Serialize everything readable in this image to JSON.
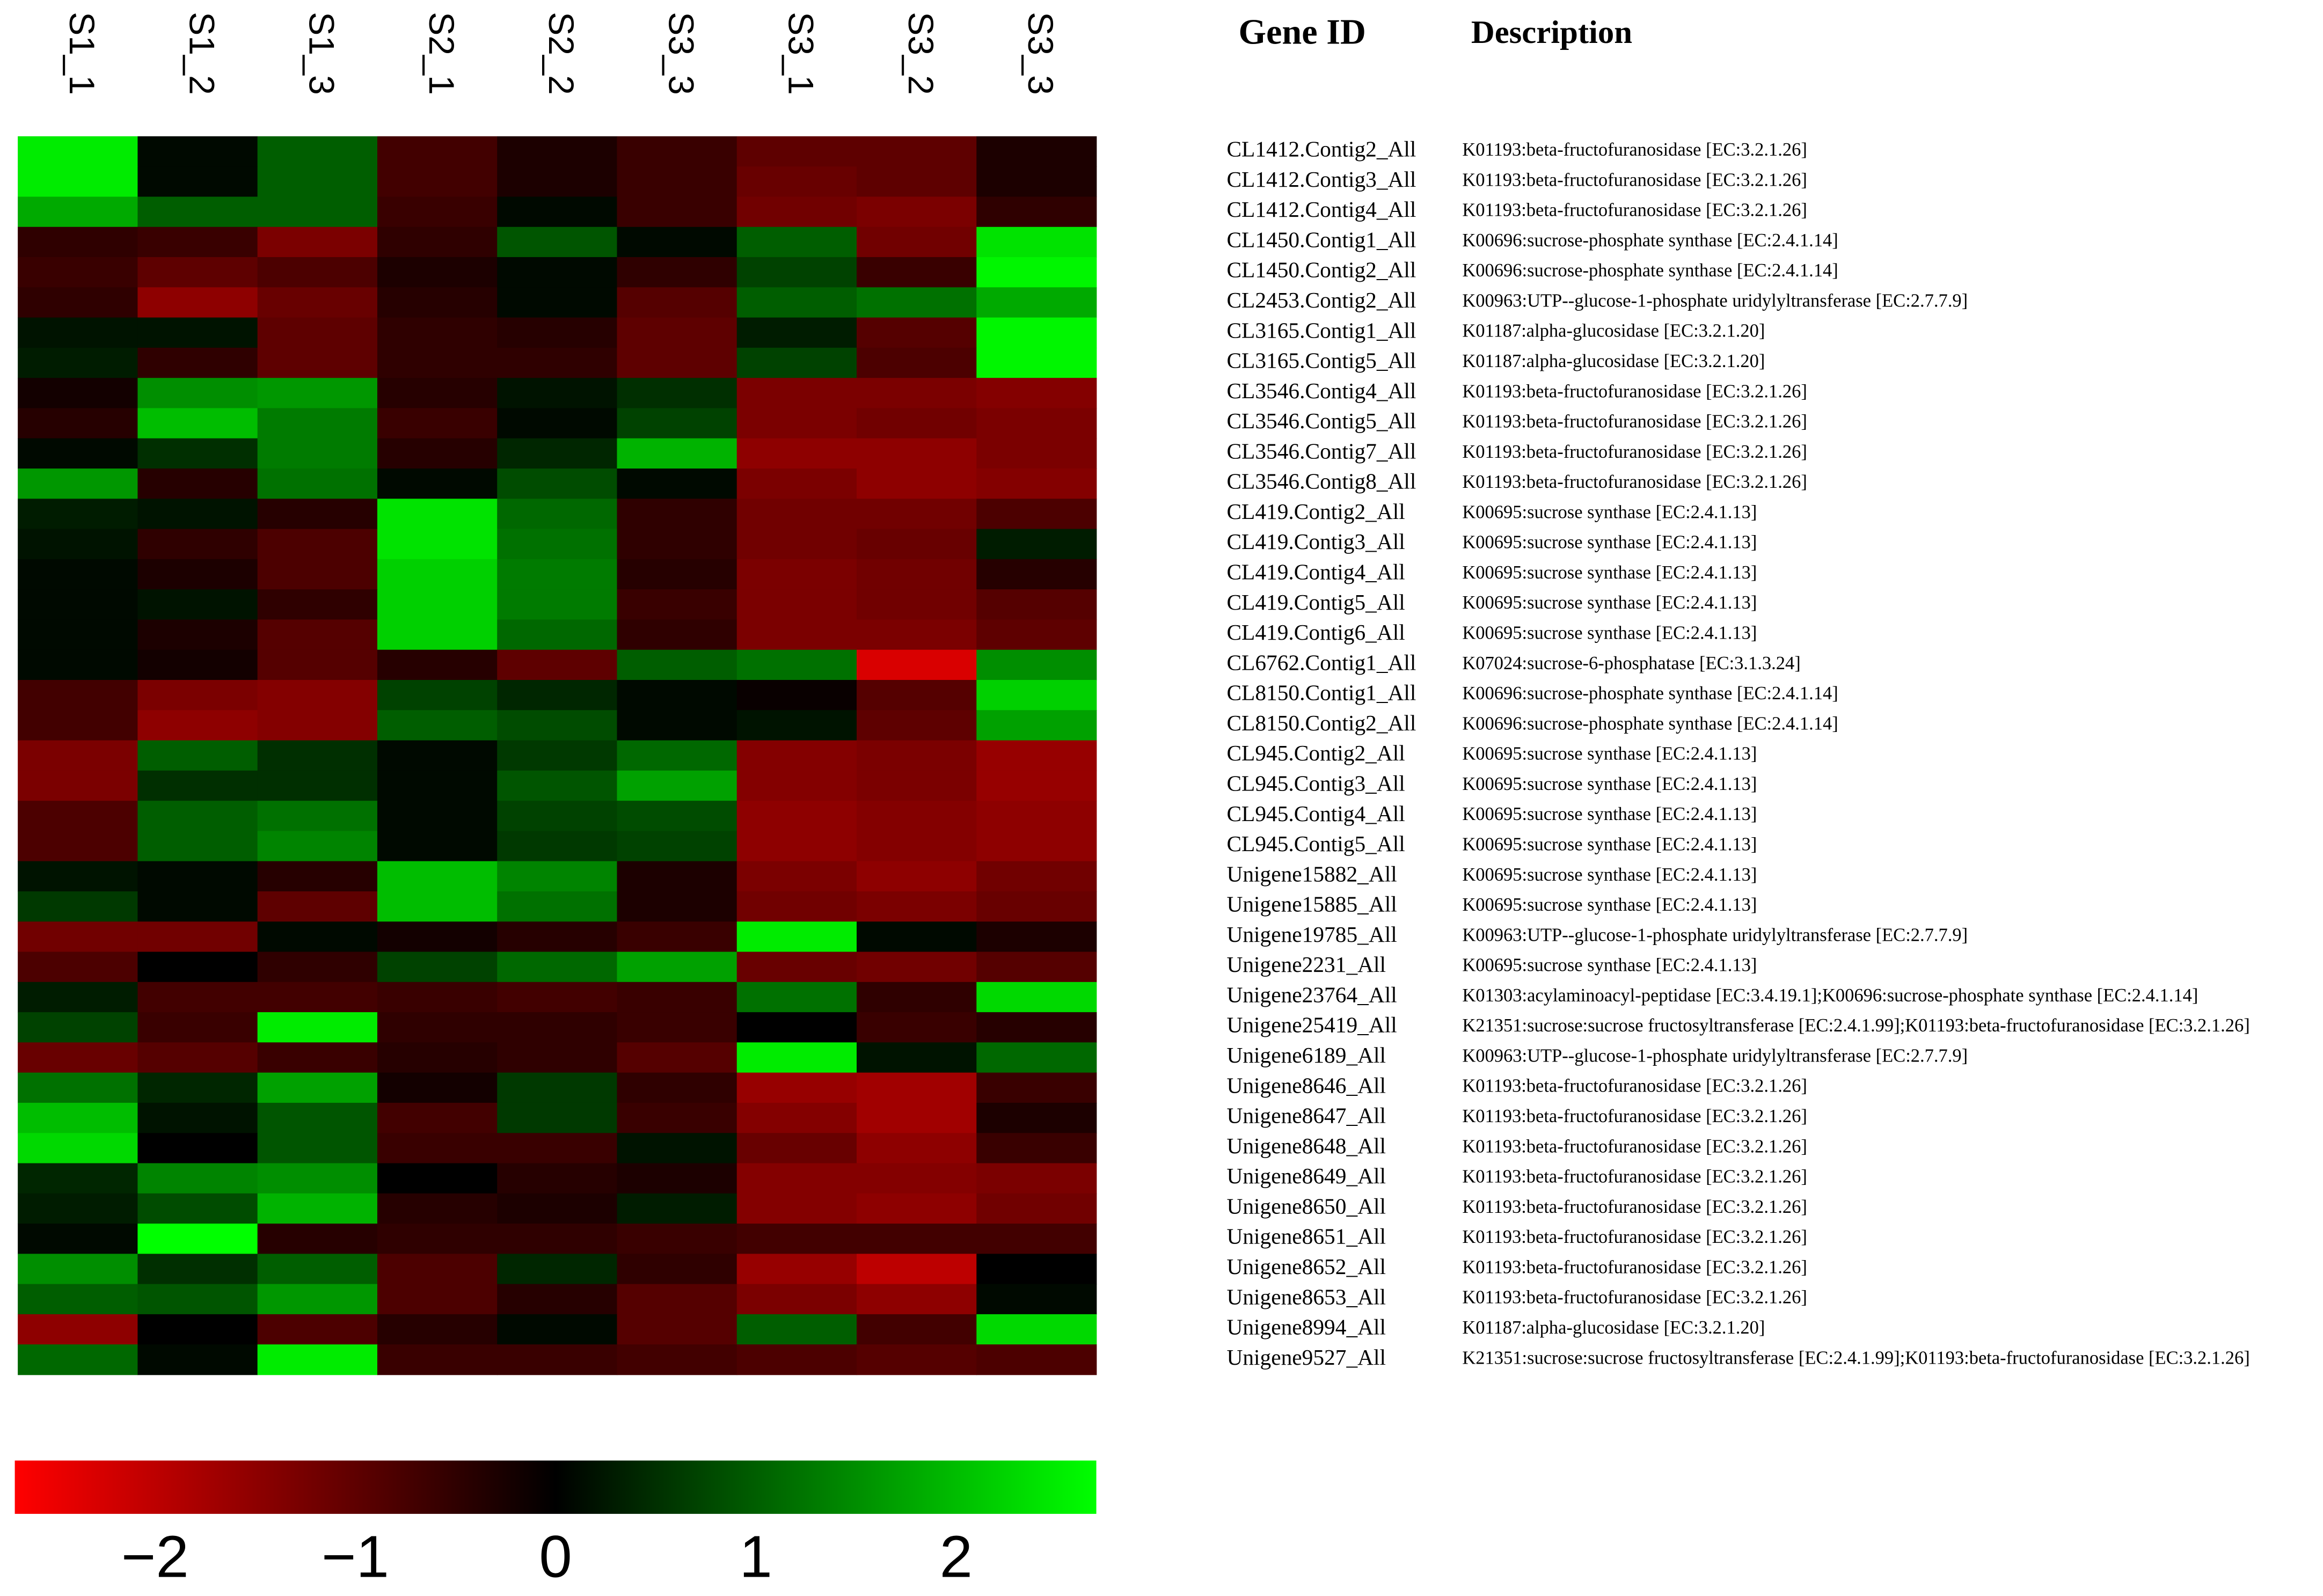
{
  "chart_data": {
    "type": "heatmap",
    "columns": [
      "S1_1",
      "S1_2",
      "S1_3",
      "S2_1",
      "S2_2",
      "S3_3",
      "S3_1",
      "S3_2",
      "S3_3"
    ],
    "row_header": "Gene ID",
    "description_header": "Description",
    "rows": [
      "CL1412.Contig2_All",
      "CL1412.Contig3_All",
      "CL1412.Contig4_All",
      "CL1450.Contig1_All",
      "CL1450.Contig2_All",
      "CL2453.Contig2_All",
      "CL3165.Contig1_All",
      "CL3165.Contig5_All",
      "CL3546.Contig4_All",
      "CL3546.Contig5_All",
      "CL3546.Contig7_All",
      "CL3546.Contig8_All",
      "CL419.Contig2_All",
      "CL419.Contig3_All",
      "CL419.Contig4_All",
      "CL419.Contig5_All",
      "CL419.Contig6_All",
      "CL6762.Contig1_All",
      "CL8150.Contig1_All",
      "CL8150.Contig2_All",
      "CL945.Contig2_All",
      "CL945.Contig3_All",
      "CL945.Contig4_All",
      "CL945.Contig5_All",
      "Unigene15882_All",
      "Unigene15885_All",
      "Unigene19785_All",
      "Unigene2231_All",
      "Unigene23764_All",
      "Unigene25419_All",
      "Unigene6189_All",
      "Unigene8646_All",
      "Unigene8647_All",
      "Unigene8648_All",
      "Unigene8649_All",
      "Unigene8650_All",
      "Unigene8651_All",
      "Unigene8652_All",
      "Unigene8653_All",
      "Unigene8994_All",
      "Unigene9527_All"
    ],
    "descriptions": [
      "K01193:beta-fructofuranosidase [EC:3.2.1.26]",
      "K01193:beta-fructofuranosidase [EC:3.2.1.26]",
      "K01193:beta-fructofuranosidase [EC:3.2.1.26]",
      "K00696:sucrose-phosphate synthase [EC:2.4.1.14]",
      "K00696:sucrose-phosphate synthase [EC:2.4.1.14]",
      "K00963:UTP--glucose-1-phosphate uridylyltransferase [EC:2.7.7.9]",
      "K01187:alpha-glucosidase [EC:3.2.1.20]",
      "K01187:alpha-glucosidase [EC:3.2.1.20]",
      "K01193:beta-fructofuranosidase [EC:3.2.1.26]",
      "K01193:beta-fructofuranosidase [EC:3.2.1.26]",
      "K01193:beta-fructofuranosidase [EC:3.2.1.26]",
      "K01193:beta-fructofuranosidase [EC:3.2.1.26]",
      "K00695:sucrose synthase [EC:2.4.1.13]",
      "K00695:sucrose synthase [EC:2.4.1.13]",
      "K00695:sucrose synthase [EC:2.4.1.13]",
      "K00695:sucrose synthase [EC:2.4.1.13]",
      "K00695:sucrose synthase [EC:2.4.1.13]",
      "K07024:sucrose-6-phosphatase [EC:3.1.3.24]",
      "K00696:sucrose-phosphate synthase [EC:2.4.1.14]",
      "K00696:sucrose-phosphate synthase [EC:2.4.1.14]",
      "K00695:sucrose synthase [EC:2.4.1.13]",
      "K00695:sucrose synthase [EC:2.4.1.13]",
      "K00695:sucrose synthase [EC:2.4.1.13]",
      "K00695:sucrose synthase [EC:2.4.1.13]",
      "K00695:sucrose synthase [EC:2.4.1.13]",
      "K00695:sucrose synthase [EC:2.4.1.13]",
      "K00963:UTP--glucose-1-phosphate uridylyltransferase [EC:2.7.7.9]",
      "K00695:sucrose synthase [EC:2.4.1.13]",
      "K01303:acylaminoacyl-peptidase [EC:3.4.19.1];K00696:sucrose-phosphate synthase [EC:2.4.1.14]",
      "K21351:sucrose:sucrose fructosyltransferase [EC:2.4.1.99];K01193:beta-fructofuranosidase [EC:3.2.1.26]",
      "K00963:UTP--glucose-1-phosphate uridylyltransferase [EC:2.7.7.9]",
      "K01193:beta-fructofuranosidase [EC:3.2.1.26]",
      "K01193:beta-fructofuranosidase [EC:3.2.1.26]",
      "K01193:beta-fructofuranosidase [EC:3.2.1.26]",
      "K01193:beta-fructofuranosidase [EC:3.2.1.26]",
      "K01193:beta-fructofuranosidase [EC:3.2.1.26]",
      "K01193:beta-fructofuranosidase [EC:3.2.1.26]",
      "K01193:beta-fructofuranosidase [EC:3.2.1.26]",
      "K01193:beta-fructofuranosidase [EC:3.2.1.26]",
      "K01187:alpha-glucosidase [EC:3.2.1.20]",
      "K21351:sucrose:sucrose fructosyltransferase [EC:2.4.1.99];K01193:beta-fructofuranosidase [EC:3.2.1.26]"
    ],
    "values": [
      [
        2.5,
        0.1,
        1.0,
        -0.7,
        -0.3,
        -0.6,
        -1.0,
        -1.0,
        -0.3
      ],
      [
        2.5,
        0.1,
        1.0,
        -0.7,
        -0.3,
        -0.6,
        -1.1,
        -1.0,
        -0.3
      ],
      [
        1.8,
        1.0,
        1.0,
        -0.6,
        0.1,
        -0.6,
        -1.2,
        -1.3,
        -0.5
      ],
      [
        -0.5,
        -0.6,
        -1.3,
        -0.5,
        0.9,
        0.1,
        1.0,
        -1.2,
        2.4
      ],
      [
        -0.6,
        -1.0,
        -0.8,
        -0.3,
        0.1,
        -0.5,
        0.7,
        -0.6,
        2.6
      ],
      [
        -0.5,
        -1.5,
        -1.1,
        -0.4,
        0.1,
        -0.9,
        1.0,
        1.2,
        1.8
      ],
      [
        0.2,
        0.2,
        -1.0,
        -0.5,
        -0.4,
        -1.0,
        0.3,
        -0.9,
        2.6
      ],
      [
        0.3,
        -0.5,
        -1.0,
        -0.5,
        -0.5,
        -1.0,
        0.7,
        -0.8,
        2.6
      ],
      [
        -0.2,
        1.5,
        1.6,
        -0.4,
        0.2,
        0.5,
        -1.3,
        -1.3,
        -1.4
      ],
      [
        -0.4,
        2.0,
        1.3,
        -0.6,
        0.1,
        0.7,
        -1.3,
        -1.2,
        -1.3
      ],
      [
        0.1,
        0.5,
        1.3,
        -0.4,
        0.4,
        1.9,
        -1.5,
        -1.5,
        -1.3
      ],
      [
        1.6,
        -0.4,
        1.2,
        0.1,
        0.8,
        0.1,
        -1.3,
        -1.5,
        -1.4
      ],
      [
        0.3,
        0.2,
        -0.4,
        2.4,
        1.1,
        -0.5,
        -1.2,
        -1.2,
        -0.8
      ],
      [
        0.2,
        -0.5,
        -0.8,
        2.4,
        1.2,
        -0.5,
        -1.2,
        -1.1,
        0.3
      ],
      [
        0.1,
        -0.3,
        -0.8,
        2.2,
        1.3,
        -0.4,
        -1.3,
        -1.2,
        -0.4
      ],
      [
        0.1,
        0.2,
        -0.5,
        2.2,
        1.3,
        -0.6,
        -1.3,
        -1.2,
        -0.9
      ],
      [
        0.1,
        -0.3,
        -0.9,
        2.2,
        1.1,
        -0.5,
        -1.3,
        -1.3,
        -1.0
      ],
      [
        0.1,
        -0.2,
        -0.9,
        -0.4,
        -1.0,
        1.0,
        1.2,
        -2.3,
        1.5
      ],
      [
        -0.7,
        -1.3,
        -1.4,
        0.7,
        0.4,
        0.1,
        -0.1,
        -0.9,
        2.2
      ],
      [
        -0.7,
        -1.5,
        -1.4,
        1.0,
        0.8,
        0.1,
        0.2,
        -1.0,
        1.7
      ],
      [
        -1.3,
        1.0,
        0.5,
        0.1,
        0.6,
        1.1,
        -1.4,
        -1.3,
        -1.6
      ],
      [
        -1.3,
        0.5,
        0.5,
        0.1,
        0.9,
        1.7,
        -1.4,
        -1.3,
        -1.6
      ],
      [
        -0.8,
        1.0,
        1.2,
        0.1,
        0.7,
        0.8,
        -1.5,
        -1.4,
        -1.5
      ],
      [
        -0.8,
        1.0,
        1.4,
        0.1,
        0.6,
        0.7,
        -1.5,
        -1.4,
        -1.5
      ],
      [
        0.2,
        0.1,
        -0.4,
        2.0,
        1.4,
        -0.3,
        -1.3,
        -1.5,
        -1.2
      ],
      [
        0.6,
        0.1,
        -1.0,
        2.0,
        1.2,
        -0.3,
        -1.2,
        -1.3,
        -1.1
      ],
      [
        -1.2,
        -1.2,
        0.1,
        -0.2,
        -0.4,
        -0.6,
        2.5,
        0.1,
        -0.3
      ],
      [
        -0.8,
        0.0,
        -0.5,
        0.7,
        1.1,
        1.7,
        -1.1,
        -1.2,
        -0.9
      ],
      [
        0.3,
        -0.7,
        -0.7,
        -0.6,
        -0.7,
        -0.6,
        1.2,
        -0.5,
        2.3
      ],
      [
        0.7,
        -0.6,
        2.5,
        -0.5,
        -0.5,
        -0.6,
        0.0,
        -0.6,
        -0.4
      ],
      [
        -1.1,
        -0.9,
        -0.6,
        -0.4,
        -0.5,
        -0.9,
        2.5,
        0.2,
        1.1
      ],
      [
        1.2,
        0.4,
        1.7,
        -0.2,
        0.6,
        -0.5,
        -1.6,
        -1.7,
        -0.6
      ],
      [
        2.0,
        0.2,
        0.9,
        -0.7,
        0.6,
        -0.6,
        -1.4,
        -1.7,
        -0.3
      ],
      [
        2.3,
        0.0,
        0.9,
        -0.6,
        -0.6,
        0.2,
        -1.1,
        -1.5,
        -0.6
      ],
      [
        0.4,
        1.4,
        1.5,
        0.0,
        -0.4,
        -0.3,
        -1.4,
        -1.4,
        -1.3
      ],
      [
        0.3,
        0.8,
        1.9,
        -0.4,
        -0.3,
        0.3,
        -1.4,
        -1.5,
        -1.2
      ],
      [
        0.1,
        2.7,
        -0.4,
        -0.5,
        -0.5,
        -0.6,
        -0.7,
        -0.7,
        -0.7
      ],
      [
        1.5,
        0.5,
        1.0,
        -0.8,
        0.4,
        -0.5,
        -1.6,
        -2.0,
        0.0
      ],
      [
        1.0,
        0.9,
        1.6,
        -0.8,
        -0.4,
        -0.9,
        -1.3,
        -1.5,
        0.1
      ],
      [
        -1.5,
        0.0,
        -0.8,
        -0.4,
        0.1,
        -0.9,
        1.0,
        -0.7,
        2.3
      ],
      [
        1.1,
        0.1,
        2.5,
        -0.6,
        -0.6,
        -0.7,
        -0.8,
        -0.9,
        -0.8
      ]
    ],
    "colorbar": {
      "lim": [
        -2.7,
        2.7
      ],
      "ticks": [
        {
          "value": -2,
          "label": "−2"
        },
        {
          "value": -1,
          "label": "−1"
        },
        0,
        1,
        2
      ],
      "colors": [
        "#ff0000",
        "#000000",
        "#00ff00"
      ]
    }
  }
}
